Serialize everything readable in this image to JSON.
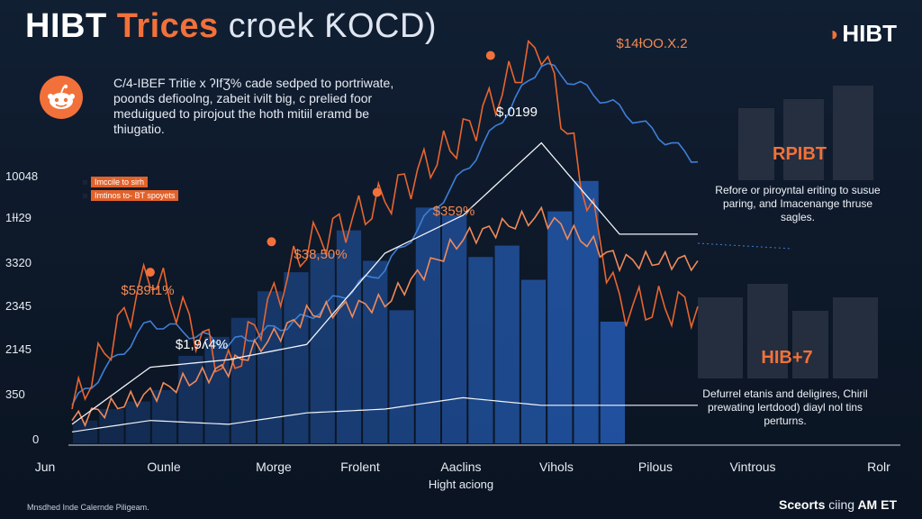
{
  "header": {
    "title_part1": "HIBT",
    "title_part2": "Trices",
    "title_part3": "croek ƘOCD)",
    "brand_icon": "gauge-icon",
    "brand_name": "HIBT"
  },
  "intro": {
    "avatar_icon": "reddit-alien-icon",
    "text": "C/4-IBEF Tritie x ʔIfƷ% cade sedped to portriwate, poonds defioolng, zabeit ivilt big, c prelied foor meduigued to pirojout the hoth mitiil eramd be thiugatio."
  },
  "legend": {
    "items": [
      "Imccile to sirh",
      "Imtinos to- BT spoyets"
    ]
  },
  "chart_data": {
    "type": "line",
    "title": "",
    "xlabel": "Hight aciong",
    "ylabel": "",
    "categories": [
      "Jun",
      "Ounle",
      "Morge",
      "Frolent",
      "Aaclins",
      "Vihols",
      "Pilous",
      "Vintrous",
      "Rolr"
    ],
    "y_ticks": [
      "10048",
      "1ƗƗ29",
      "3320",
      "2345",
      "2145",
      "350",
      "0"
    ],
    "ylim": [
      0,
      10
    ],
    "peak_labels": [
      {
        "text": "$539Ɨ1%",
        "x": 1.0,
        "y": 4.5
      },
      {
        "text": "$1,9ʎ4%",
        "x": 1.2,
        "y": 3.4
      },
      {
        "text": "$38,50%",
        "x": 2.55,
        "y": 5.3
      },
      {
        "text": "$359%",
        "x": 3.9,
        "y": 6.6
      },
      {
        "text": "$,0199",
        "x": 4.55,
        "y": 8.1
      },
      {
        "text": "$14ƗOO.X.2",
        "x": 5.35,
        "y": 10.2
      }
    ],
    "grid": false,
    "legend_position": "top-left",
    "series": [
      {
        "values": [
          1.0,
          3.2,
          2.6,
          3.3,
          4.6,
          7.1,
          10.0,
          8.8,
          7.4
        ]
      },
      {
        "values": [
          0.9,
          4.5,
          1.9,
          5.2,
          6.4,
          8.1,
          10.5,
          3.6,
          3.6
        ]
      },
      {
        "values": [
          0.6,
          1.3,
          2.0,
          3.4,
          3.7,
          5.4,
          6.0,
          4.8,
          4.8
        ]
      },
      {
        "values": [
          0.5,
          2.0,
          2.2,
          2.6,
          5.0,
          6.0,
          7.9,
          5.5,
          5.5
        ]
      },
      {
        "values": [
          0.3,
          0.6,
          0.5,
          0.8,
          0.9,
          1.2,
          1.0,
          1.0,
          1.0
        ]
      }
    ],
    "bars": [
      0.6,
      0.9,
      1.1,
      1.4,
      2.3,
      2.8,
      3.3,
      4.0,
      4.5,
      5.0,
      5.6,
      4.8,
      3.5,
      6.2,
      6.0,
      4.9,
      5.2,
      4.3,
      6.1,
      6.9,
      3.2
    ]
  },
  "cards": [
    {
      "title": "RPIBT",
      "text": "Refore or piroyntal eriting to susue paring, and Imacenange thruse sagles."
    },
    {
      "title": "HIB+7",
      "text": "Defurrel etanis and deligires, Chiril prewating lertdood) diayl nol tins perturns."
    }
  ],
  "footer": {
    "left": "Mnsdhed Inde Calernde Piligeam.",
    "right_bold": "Sceorts",
    "right_thin": "ciing",
    "right_brand": "AM ET"
  },
  "colors": {
    "accent": "#f2713a",
    "blue_line": "#3f7fd6",
    "background": "#0f1b2d",
    "bars": "#2a6ad1"
  }
}
